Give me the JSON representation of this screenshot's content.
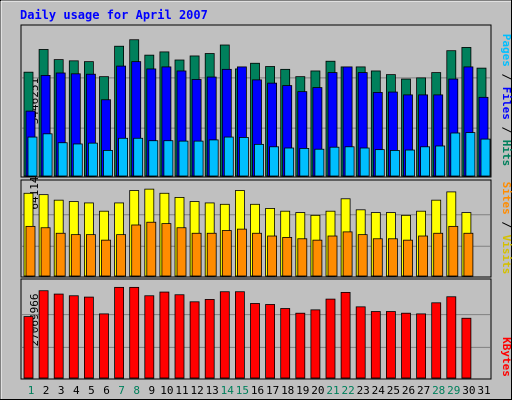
{
  "chart_data": [
    {
      "type": "bar",
      "title": "Daily usage for April 2007",
      "max_label": "3446251",
      "categories": [
        "1",
        "2",
        "3",
        "4",
        "5",
        "6",
        "7",
        "8",
        "9",
        "10",
        "11",
        "12",
        "13",
        "14",
        "15",
        "16",
        "17",
        "18",
        "19",
        "20",
        "21",
        "22",
        "23",
        "24",
        "25",
        "26",
        "27",
        "28",
        "29",
        "30",
        "31"
      ],
      "ylim": [
        0,
        3600000
      ],
      "legend": [
        "Hits",
        "Files",
        "Pages"
      ],
      "series": [
        {
          "name": "Hits",
          "color": "#00805c",
          "values": [
            2560000,
            3120000,
            2870000,
            2840000,
            2820000,
            2450000,
            3200000,
            3360000,
            2980000,
            3060000,
            2860000,
            2960000,
            3020000,
            3230000,
            2640000,
            2780000,
            2700000,
            2630000,
            2450000,
            2590000,
            2830000,
            2690000,
            2690000,
            2590000,
            2500000,
            2390000,
            2420000,
            2550000,
            3090000,
            3170000,
            2660000
          ]
        },
        {
          "name": "Files",
          "color": "#0000ff",
          "values": [
            1600000,
            2480000,
            2540000,
            2520000,
            2510000,
            1880000,
            2710000,
            2820000,
            2640000,
            2690000,
            2590000,
            2380000,
            2440000,
            2630000,
            2690000,
            2370000,
            2290000,
            2230000,
            2080000,
            2180000,
            2550000,
            2690000,
            2550000,
            2060000,
            2070000,
            2000000,
            2000000,
            2000000,
            2390000,
            2690000,
            1940000
          ]
        },
        {
          "name": "Pages",
          "color": "#00bfff",
          "values": [
            960000,
            1040000,
            820000,
            790000,
            810000,
            630000,
            930000,
            930000,
            870000,
            870000,
            860000,
            860000,
            890000,
            960000,
            950000,
            780000,
            720000,
            690000,
            680000,
            660000,
            710000,
            720000,
            690000,
            650000,
            630000,
            640000,
            720000,
            740000,
            1060000,
            1070000,
            910000
          ]
        }
      ]
    },
    {
      "type": "bar",
      "max_label": "64114",
      "categories": [
        "1",
        "2",
        "3",
        "4",
        "5",
        "6",
        "7",
        "8",
        "9",
        "10",
        "11",
        "12",
        "13",
        "14",
        "15",
        "16",
        "17",
        "18",
        "19",
        "20",
        "21",
        "22",
        "23",
        "24",
        "25",
        "26",
        "27",
        "28",
        "29",
        "30",
        "31"
      ],
      "ylim": [
        0,
        66000
      ],
      "legend": [
        "Visits",
        "Sites"
      ],
      "series": [
        {
          "name": "Visits",
          "color": "#ffff00",
          "values": [
            60000,
            59000,
            55000,
            54000,
            53000,
            47000,
            53000,
            62000,
            63000,
            60000,
            57000,
            54000,
            53000,
            52000,
            62000,
            52000,
            49000,
            47000,
            46000,
            44000,
            47000,
            56000,
            48000,
            46000,
            46000,
            44000,
            47000,
            55000,
            61000,
            46000,
            0
          ]
        },
        {
          "name": "Sites",
          "color": "#ff8c00",
          "values": [
            36000,
            35000,
            31000,
            30000,
            30000,
            26000,
            30000,
            37000,
            39000,
            38000,
            35000,
            31000,
            31000,
            33000,
            34000,
            31000,
            29000,
            28000,
            27000,
            26000,
            29000,
            32000,
            30000,
            27000,
            27000,
            26000,
            29000,
            31000,
            36000,
            31000,
            0
          ]
        }
      ]
    },
    {
      "type": "bar",
      "max_label": "27069966",
      "categories": [
        "1",
        "2",
        "3",
        "4",
        "5",
        "6",
        "7",
        "8",
        "9",
        "10",
        "11",
        "12",
        "13",
        "14",
        "15",
        "16",
        "17",
        "18",
        "19",
        "20",
        "21",
        "22",
        "23",
        "24",
        "25",
        "26",
        "27",
        "28",
        "29",
        "30",
        "31"
      ],
      "ylim": [
        0,
        28000000
      ],
      "legend": [
        "KBytes"
      ],
      "series": [
        {
          "name": "KBytes",
          "color": "#ff0000",
          "values": [
            18300000,
            26000000,
            25000000,
            24500000,
            24100000,
            19100000,
            27000000,
            27000000,
            24500000,
            25600000,
            24800000,
            22700000,
            23400000,
            25700000,
            25700000,
            22200000,
            21900000,
            20700000,
            19300000,
            20300000,
            23500000,
            25500000,
            21200000,
            19800000,
            19800000,
            19300000,
            19100000,
            22400000,
            24200000,
            17800000,
            0
          ]
        }
      ]
    }
  ],
  "colors": {
    "frame": "#c0c0c0",
    "title": "#0000ff",
    "axis_text": "#000000",
    "weekend_day": "#00805c",
    "grid": "#808080"
  },
  "x_labels": [
    "1",
    "2",
    "3",
    "4",
    "5",
    "6",
    "7",
    "8",
    "9",
    "10",
    "11",
    "12",
    "13",
    "14",
    "15",
    "16",
    "17",
    "18",
    "19",
    "20",
    "21",
    "22",
    "23",
    "24",
    "25",
    "26",
    "27",
    "28",
    "29",
    "30",
    "31"
  ],
  "weekend_days": [
    1,
    7,
    8,
    14,
    15,
    21,
    22,
    28,
    29
  ]
}
